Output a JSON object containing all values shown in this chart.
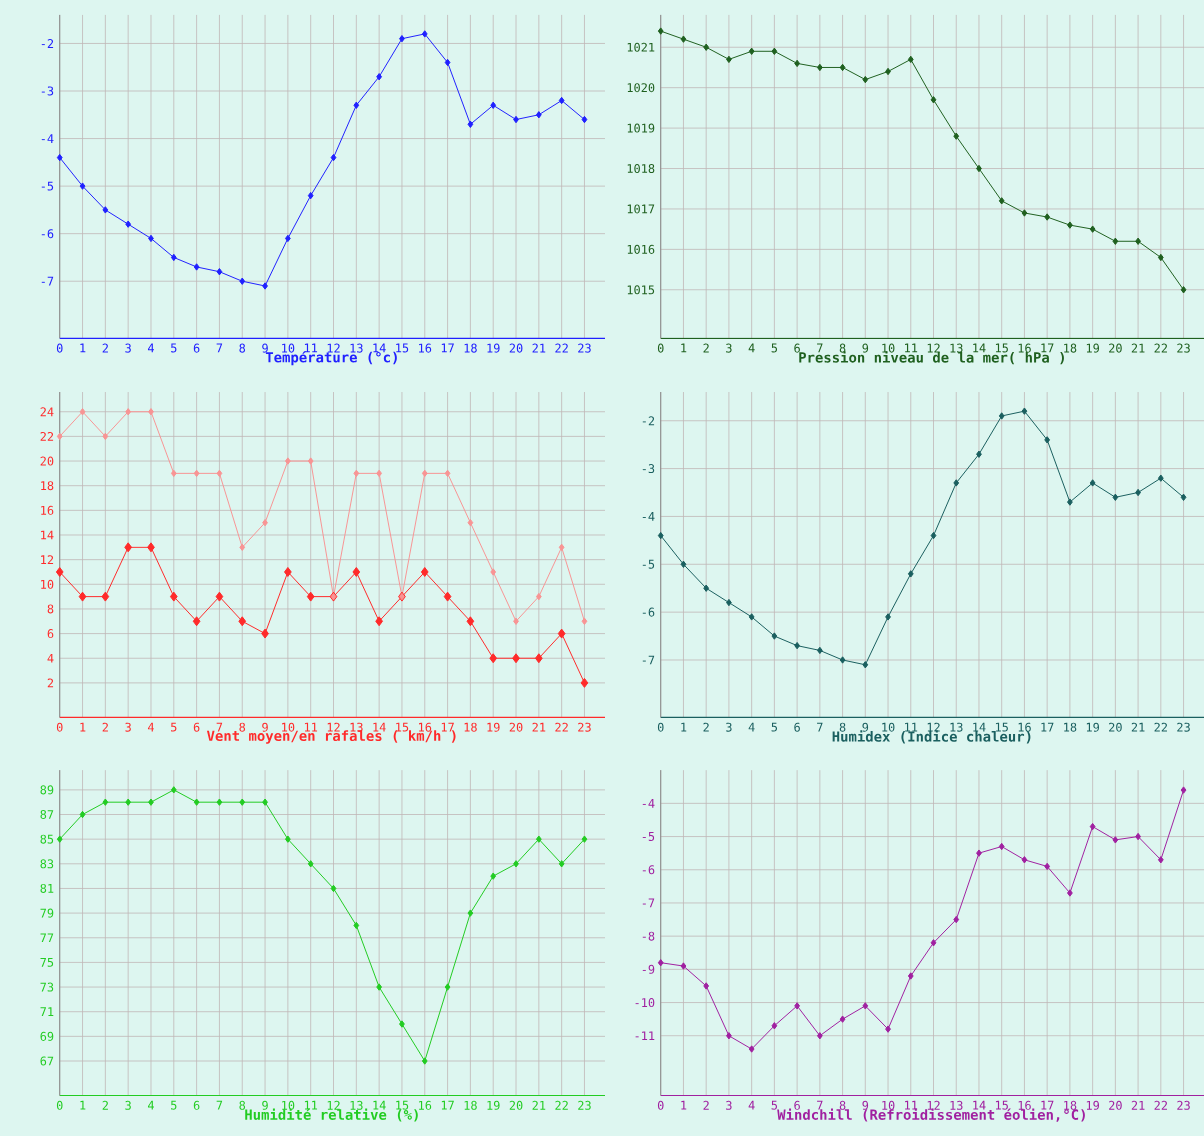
{
  "chart_data": [
    {
      "type": "line",
      "xlabel": "Température (°c)",
      "x": [
        0,
        1,
        2,
        3,
        4,
        5,
        6,
        7,
        8,
        9,
        10,
        11,
        12,
        13,
        14,
        15,
        16,
        17,
        18,
        19,
        20,
        21,
        22,
        23
      ],
      "xlim": [
        0,
        23.9
      ],
      "xticks": [
        0,
        1,
        2,
        3,
        4,
        5,
        6,
        7,
        8,
        9,
        10,
        11,
        12,
        13,
        14,
        15,
        16,
        17,
        18,
        19,
        20,
        21,
        22,
        23
      ],
      "ylim": [
        -8.2,
        -1.4
      ],
      "yticks": [
        -7,
        -6,
        -5,
        -4,
        -3,
        -2
      ],
      "grid": true,
      "marker": "diamond",
      "series": [
        {
          "color": "#2020ff",
          "values": [
            -4.4,
            -5.0,
            -5.5,
            -5.8,
            -6.1,
            -6.5,
            -6.7,
            -6.8,
            -7.0,
            -7.1,
            -6.1,
            -5.2,
            -4.4,
            -3.3,
            -2.7,
            -1.9,
            -1.8,
            -2.4,
            -3.7,
            -3.3,
            -3.6,
            -3.5,
            -3.2,
            -3.6
          ]
        }
      ]
    },
    {
      "type": "line",
      "xlabel": "Pression niveau de la mer( hPa )",
      "x": [
        0,
        1,
        2,
        3,
        4,
        5,
        6,
        7,
        8,
        9,
        10,
        11,
        12,
        13,
        14,
        15,
        16,
        17,
        18,
        19,
        20,
        21,
        22,
        23
      ],
      "xlim": [
        0,
        23.9
      ],
      "xticks": [
        0,
        1,
        2,
        3,
        4,
        5,
        6,
        7,
        8,
        9,
        10,
        11,
        12,
        13,
        14,
        15,
        16,
        17,
        18,
        19,
        20,
        21,
        22,
        23
      ],
      "ylim": [
        1013.8,
        1021.8
      ],
      "yticks": [
        1015,
        1016,
        1017,
        1018,
        1019,
        1020,
        1021
      ],
      "grid": true,
      "marker": "diamond",
      "series": [
        {
          "color": "#1f601f",
          "values": [
            1021.4,
            1021.2,
            1021.0,
            1020.7,
            1020.9,
            1020.9,
            1020.6,
            1020.5,
            1020.5,
            1020.2,
            1020.4,
            1020.7,
            1019.7,
            1018.8,
            1018.0,
            1017.2,
            1016.9,
            1016.8,
            1016.6,
            1016.5,
            1016.2,
            1016.2,
            1015.8,
            1015.0
          ]
        }
      ]
    },
    {
      "type": "line",
      "xlabel": "Vent moyen/en rafales ( km/h )",
      "x": [
        0,
        1,
        2,
        3,
        4,
        5,
        6,
        7,
        8,
        9,
        10,
        11,
        12,
        13,
        14,
        15,
        16,
        17,
        18,
        19,
        20,
        21,
        22,
        23
      ],
      "xlim": [
        0,
        23.9
      ],
      "xticks": [
        0,
        1,
        2,
        3,
        4,
        5,
        6,
        7,
        8,
        9,
        10,
        11,
        12,
        13,
        14,
        15,
        16,
        17,
        18,
        19,
        20,
        21,
        22,
        23
      ],
      "ylim": [
        -0.8,
        25.6
      ],
      "yticks": [
        2,
        4,
        6,
        8,
        10,
        12,
        14,
        16,
        18,
        20,
        22,
        24
      ],
      "grid": true,
      "marker": "diamond",
      "series": [
        {
          "color": "#ff2a2a",
          "values": [
            11,
            9,
            9,
            13,
            13,
            9,
            7,
            9,
            7,
            6,
            11,
            9,
            9,
            11,
            7,
            9,
            11,
            9,
            7,
            4,
            4,
            4,
            6,
            2
          ]
        },
        {
          "color": "#f89494",
          "values": [
            22,
            24,
            22,
            24,
            24,
            19,
            19,
            19,
            13,
            15,
            20,
            20,
            9,
            19,
            19,
            9,
            19,
            19,
            15,
            11,
            7,
            9,
            13,
            7
          ]
        }
      ]
    },
    {
      "type": "line",
      "xlabel": "Humidex (Indice chaleur)",
      "x": [
        0,
        1,
        2,
        3,
        4,
        5,
        6,
        7,
        8,
        9,
        10,
        11,
        12,
        13,
        14,
        15,
        16,
        17,
        18,
        19,
        20,
        21,
        22,
        23
      ],
      "xlim": [
        0,
        23.9
      ],
      "xticks": [
        0,
        1,
        2,
        3,
        4,
        5,
        6,
        7,
        8,
        9,
        10,
        11,
        12,
        13,
        14,
        15,
        16,
        17,
        18,
        19,
        20,
        21,
        22,
        23
      ],
      "ylim": [
        -8.2,
        -1.4
      ],
      "yticks": [
        -7,
        -6,
        -5,
        -4,
        -3,
        -2
      ],
      "grid": true,
      "marker": "diamond",
      "series": [
        {
          "color": "#1a5f5f",
          "values": [
            -4.4,
            -5.0,
            -5.5,
            -5.8,
            -6.1,
            -6.5,
            -6.7,
            -6.8,
            -7.0,
            -7.1,
            -6.1,
            -5.2,
            -4.4,
            -3.3,
            -2.7,
            -1.9,
            -1.8,
            -2.4,
            -3.7,
            -3.3,
            -3.6,
            -3.5,
            -3.2,
            -3.6
          ]
        }
      ]
    },
    {
      "type": "line",
      "xlabel": "Humidité relative (%)",
      "x": [
        0,
        1,
        2,
        3,
        4,
        5,
        6,
        7,
        8,
        9,
        10,
        11,
        12,
        13,
        14,
        15,
        16,
        17,
        18,
        19,
        20,
        21,
        22,
        23
      ],
      "xlim": [
        0,
        23.9
      ],
      "xticks": [
        0,
        1,
        2,
        3,
        4,
        5,
        6,
        7,
        8,
        9,
        10,
        11,
        12,
        13,
        14,
        15,
        16,
        17,
        18,
        19,
        20,
        21,
        22,
        23
      ],
      "ylim": [
        64.2,
        90.6
      ],
      "yticks": [
        67,
        69,
        71,
        73,
        75,
        77,
        79,
        81,
        83,
        85,
        87,
        89
      ],
      "grid": true,
      "marker": "diamond",
      "series": [
        {
          "color": "#22cc22",
          "values": [
            85,
            87,
            88,
            88,
            88,
            89,
            88,
            88,
            88,
            88,
            85,
            83,
            81,
            78,
            73,
            70,
            67,
            73,
            79,
            82,
            83,
            85,
            83,
            85
          ]
        }
      ]
    },
    {
      "type": "line",
      "xlabel": "Windchill (Refroidissement éolien,°C)",
      "x": [
        0,
        1,
        2,
        3,
        4,
        5,
        6,
        7,
        8,
        9,
        10,
        11,
        12,
        13,
        14,
        15,
        16,
        17,
        18,
        19,
        20,
        21,
        22,
        23
      ],
      "xlim": [
        0,
        23.9
      ],
      "xticks": [
        0,
        1,
        2,
        3,
        4,
        5,
        6,
        7,
        8,
        9,
        10,
        11,
        12,
        13,
        14,
        15,
        16,
        17,
        18,
        19,
        20,
        21,
        22,
        23
      ],
      "ylim": [
        -12.8,
        -3.0
      ],
      "yticks": [
        -11,
        -10,
        -9,
        -8,
        -7,
        -6,
        -5,
        -4
      ],
      "grid": true,
      "marker": "diamond",
      "series": [
        {
          "color": "#a020a0",
          "values": [
            -8.8,
            -8.9,
            -9.5,
            -11.0,
            -11.4,
            -10.7,
            -10.1,
            -11.0,
            -10.5,
            -10.1,
            -10.8,
            -9.2,
            -8.2,
            -7.5,
            -5.5,
            -5.3,
            -5.7,
            -5.9,
            -6.7,
            -4.7,
            -5.1,
            -5.0,
            -5.7,
            -3.6
          ]
        }
      ]
    }
  ]
}
